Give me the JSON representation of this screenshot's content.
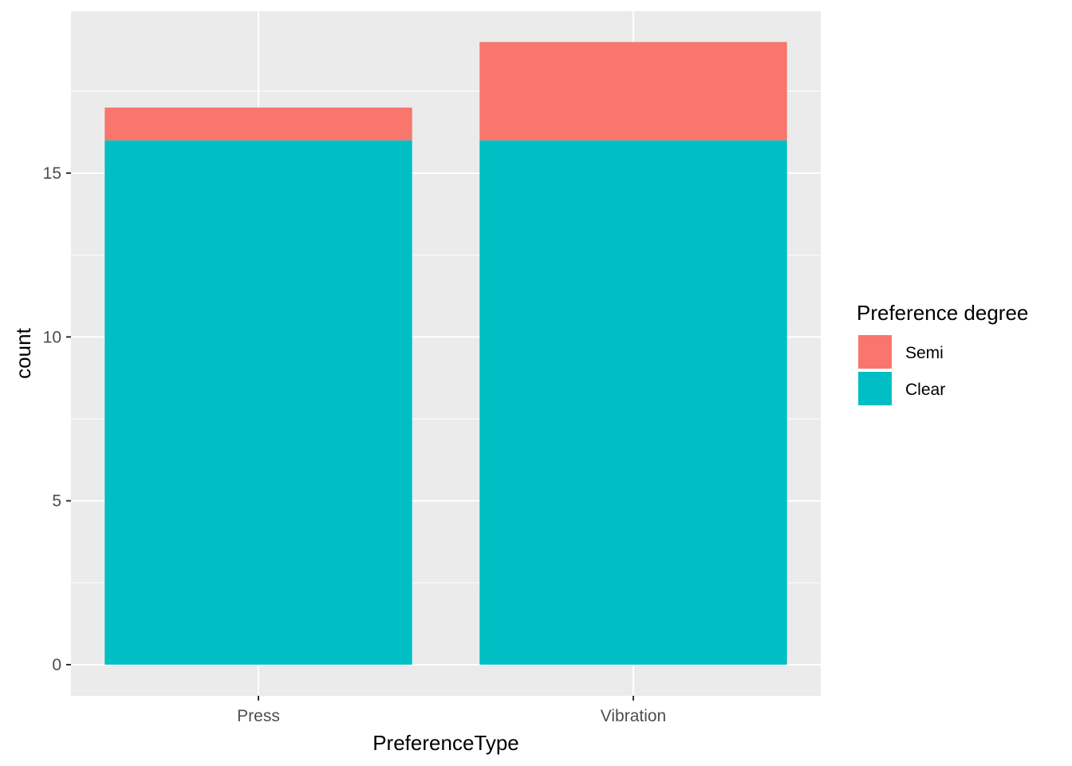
{
  "chart_data": {
    "type": "bar",
    "stacked": true,
    "categories": [
      "Press",
      "Vibration"
    ],
    "series": [
      {
        "name": "Clear",
        "values": [
          16,
          16
        ],
        "color": "#00BFC4"
      },
      {
        "name": "Semi",
        "values": [
          1,
          3
        ],
        "color": "#F8766D"
      }
    ],
    "xlabel": "PreferenceType",
    "ylabel": "count",
    "ylim": [
      0,
      19
    ],
    "yticks": [
      0,
      5,
      10,
      15
    ],
    "grid": true,
    "panel_background": "#EBEBEB",
    "legend": {
      "title": "Preference degree",
      "position": "right",
      "entries": [
        {
          "label": "Semi",
          "color": "#F8766D"
        },
        {
          "label": "Clear",
          "color": "#00BFC4"
        }
      ]
    }
  }
}
